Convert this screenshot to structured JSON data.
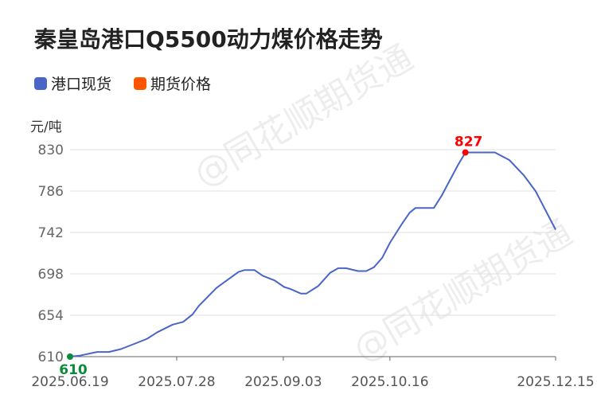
{
  "title": "秦皇岛港口Q5500动力煤价格走势",
  "watermark": "@同花顺期货通",
  "legend": [
    {
      "label": "港口现货",
      "color": "#4a65c6"
    },
    {
      "label": "期货价格",
      "color": "#ff5500"
    }
  ],
  "chart_data": {
    "type": "line",
    "title": "秦皇岛港口Q5500动力煤价格走势",
    "ylabel": "元/吨",
    "ylim": [
      610,
      830
    ],
    "yticks": [
      610,
      654,
      698,
      742,
      786,
      830
    ],
    "xlim": [
      0,
      118.4
    ],
    "xticks": [
      {
        "x": 0,
        "label": "2025.06.19"
      },
      {
        "x": 26,
        "label": "2025.07.28"
      },
      {
        "x": 52,
        "label": "2025.09.03"
      },
      {
        "x": 78,
        "label": "2025.10.16"
      },
      {
        "x": 118.4,
        "label": "2025.12.15"
      }
    ],
    "grid": true,
    "series": [
      {
        "name": "港口现货",
        "color": "#4a65c6",
        "points": [
          [
            0,
            610
          ],
          [
            2.3,
            611
          ],
          [
            6.6,
            615
          ],
          [
            9.5,
            615
          ],
          [
            12.4,
            618
          ],
          [
            15.9,
            624
          ],
          [
            18.8,
            629
          ],
          [
            21.3,
            636
          ],
          [
            25,
            644
          ],
          [
            27.6,
            647
          ],
          [
            29.9,
            655
          ],
          [
            31.4,
            664
          ],
          [
            35.7,
            683
          ],
          [
            38.2,
            691
          ],
          [
            41.1,
            700
          ],
          [
            42.5,
            702
          ],
          [
            45,
            702
          ],
          [
            47,
            696
          ],
          [
            49.9,
            691
          ],
          [
            52.2,
            684
          ],
          [
            53.7,
            682
          ],
          [
            56.3,
            677
          ],
          [
            57.6,
            677
          ],
          [
            60.5,
            685
          ],
          [
            63.4,
            699
          ],
          [
            65.4,
            704
          ],
          [
            67.3,
            704
          ],
          [
            70.2,
            701
          ],
          [
            72.2,
            701
          ],
          [
            74.1,
            705
          ],
          [
            76.1,
            715
          ],
          [
            78,
            731
          ],
          [
            80.9,
            751
          ],
          [
            82.8,
            763
          ],
          [
            84.2,
            768
          ],
          [
            88.7,
            768
          ],
          [
            90.6,
            781
          ],
          [
            94.5,
            813
          ],
          [
            96.4,
            827
          ],
          [
            103.6,
            827
          ],
          [
            107.1,
            819
          ],
          [
            110.6,
            803
          ],
          [
            113.5,
            786
          ],
          [
            118.4,
            745
          ]
        ]
      },
      {
        "name": "期货价格",
        "color": "#ff5500",
        "points": []
      }
    ],
    "annotations": [
      {
        "label": "610",
        "x": 0,
        "y": 610,
        "color": "#0a8a3a",
        "type": "min"
      },
      {
        "label": "827",
        "x": 96.4,
        "y": 827,
        "color": "#ff0000",
        "type": "max"
      }
    ]
  }
}
